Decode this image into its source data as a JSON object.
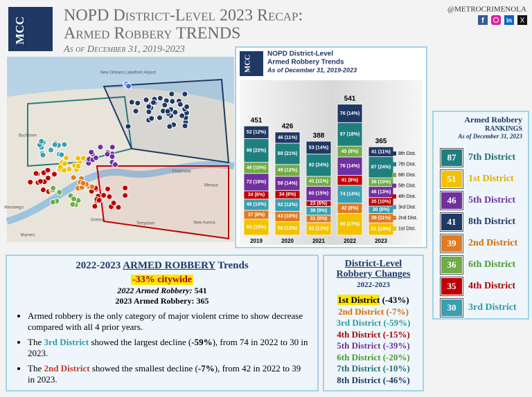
{
  "header": {
    "logo": "MCC",
    "title_line1": "NOPD District-Level 2023 Recap:",
    "title_line2": "Armed Robbery TRENDS",
    "subtitle": "As of December 31, 2019-2023",
    "handle": "@METROCRIMENOLA",
    "social": [
      "f",
      "in",
      "X"
    ]
  },
  "map": {
    "labels": [
      "New Orleans Lakefront Airport",
      "Bucktown",
      "Chalmette",
      "Meraux",
      "Gretna",
      "Terrytown",
      "Marrero",
      "Westwego",
      "New Aurora"
    ]
  },
  "chart_data": {
    "type": "bar",
    "stacked": true,
    "logo": "MCC",
    "title": "NOPD District-Level",
    "subtitle": "Armed Robbery Trends",
    "note": "As of December 31, 2019-2023",
    "categories": [
      "2019",
      "2020",
      "2021",
      "2022",
      "2023"
    ],
    "totals": [
      451,
      426,
      388,
      541,
      365
    ],
    "series": [
      {
        "name": "1st Dist.",
        "color": "#f2c200",
        "values": [
          66,
          56,
          52,
          90,
          51
        ],
        "value_labels": [
          "66 (15%)",
          "56 (13%)",
          "52 (13%)",
          "90 (17%)",
          "51 (14%)"
        ]
      },
      {
        "name": "2nd Dist.",
        "color": "#e07b20",
        "values": [
          37,
          43,
          31,
          42,
          39
        ],
        "value_labels": [
          "37 (8%)",
          "43 (10%)",
          "31 (8%)",
          "42 (8%)",
          "39 (11%)"
        ]
      },
      {
        "name": "3rd Dist.",
        "color": "#3a9fb0",
        "values": [
          46,
          52,
          36,
          74,
          30
        ],
        "value_labels": [
          "46 (10%)",
          "52 (12%)",
          "36 (9%)",
          "74 (14%)",
          "30 (8%)"
        ]
      },
      {
        "name": "4th Dist.",
        "color": "#c00000",
        "values": [
          34,
          34,
          23,
          41,
          35
        ],
        "value_labels": [
          "34 (8%)",
          "34 (8%)",
          "23 (6%)",
          "41 (8%)",
          "35 (10%)"
        ]
      },
      {
        "name": "5th Dist.",
        "color": "#7030a0",
        "values": [
          72,
          58,
          60,
          76,
          46
        ],
        "value_labels": [
          "72 (16%)",
          "58 (14%)",
          "60 (15%)",
          "76 (14%)",
          "46 (13%)"
        ]
      },
      {
        "name": "6th Dist.",
        "color": "#70ad47",
        "values": [
          46,
          49,
          41,
          45,
          36
        ],
        "value_labels": [
          "46 (10%)",
          "49 (12%)",
          "41 (11%)",
          "45 (8%)",
          "36 (10%)"
        ]
      },
      {
        "name": "7th Dist.",
        "color": "#1f7f7f",
        "values": [
          98,
          88,
          92,
          97,
          87
        ],
        "value_labels": [
          "98 (22%)",
          "88 (21%)",
          "92 (24%)",
          "97 (18%)",
          "87 (24%)"
        ]
      },
      {
        "name": "8th Dist.",
        "color": "#1f3864",
        "values": [
          52,
          46,
          53,
          76,
          41
        ],
        "value_labels": [
          "52 (12%)",
          "46 (11%)",
          "53 (14%)",
          "76 (14%)",
          "41 (11%)"
        ]
      }
    ]
  },
  "rankings": {
    "title": "Armed Robbery",
    "subtitle": "RANKINGS",
    "note": "As of December 31, 2023",
    "items": [
      {
        "value": 87,
        "label": "7th District",
        "color": "#1f7f7f",
        "text_color": "#1f6f6f"
      },
      {
        "value": 51,
        "label": "1st District",
        "color": "#f2c200",
        "text_color": "#e0b000"
      },
      {
        "value": 46,
        "label": "5th District",
        "color": "#7030a0",
        "text_color": "#7030a0"
      },
      {
        "value": 41,
        "label": "8th District",
        "color": "#1f3864",
        "text_color": "#1f3864"
      },
      {
        "value": 39,
        "label": "2nd District",
        "color": "#e07b20",
        "text_color": "#d46b08"
      },
      {
        "value": 36,
        "label": "6th District",
        "color": "#70ad47",
        "text_color": "#4e9a2f"
      },
      {
        "value": 35,
        "label": "4th District",
        "color": "#c00000",
        "text_color": "#b00000"
      },
      {
        "value": 30,
        "label": "3rd District",
        "color": "#3a9fb0",
        "text_color": "#2e9aa6"
      }
    ]
  },
  "trends": {
    "title_pre": "2022-2023",
    "title_mid": "ARMED ROBBERY",
    "title_post": "Trends",
    "citywide": "-33% citywide",
    "label_2022": "2022 Armed Robbery:",
    "value_2022": 541,
    "label_2023": "2023 Armed Robbery:",
    "value_2023": 365,
    "bullets": [
      [
        {
          "text": "Armed robbery is the only category of major violent crime to show decrease compared with all 4 prior years."
        }
      ],
      [
        {
          "text": "The "
        },
        {
          "text": "3rd District",
          "color": "#2e9aa6",
          "bold": true
        },
        {
          "text": " showed the largest decline ("
        },
        {
          "text": "-59%",
          "bold": true
        },
        {
          "text": "), from 74 in 2022 to 30 in 2023."
        }
      ],
      [
        {
          "text": "The "
        },
        {
          "text": "2nd District",
          "color": "#c0392b",
          "bold": true
        },
        {
          "text": " showed the smallest decline ("
        },
        {
          "text": "-7%",
          "bold": true
        },
        {
          "text": "), from 42 in 2022 to 39 in 2023."
        }
      ]
    ]
  },
  "changes": {
    "title_line1": "District-Level",
    "title_line2": "Robbery Changes",
    "subtitle": "2022-2023",
    "items": [
      {
        "district": "1st District",
        "change": "(-43%)",
        "color": "#000000",
        "highlight": "#ffe600"
      },
      {
        "district": "2nd District",
        "change": "(-7%)",
        "color": "#d46b08"
      },
      {
        "district": "3rd District",
        "change": "(-59%)",
        "color": "#2e9aa6"
      },
      {
        "district": "4th District",
        "change": "(-15%)",
        "color": "#b00000"
      },
      {
        "district": "5th District",
        "change": "(-39%)",
        "color": "#7030a0"
      },
      {
        "district": "6th District",
        "change": "(-20%)",
        "color": "#4e9a2f"
      },
      {
        "district": "7th District",
        "change": "(-10%)",
        "color": "#1f6f6f"
      },
      {
        "district": "8th District",
        "change": "(-46%)",
        "color": "#1f3864"
      }
    ]
  }
}
